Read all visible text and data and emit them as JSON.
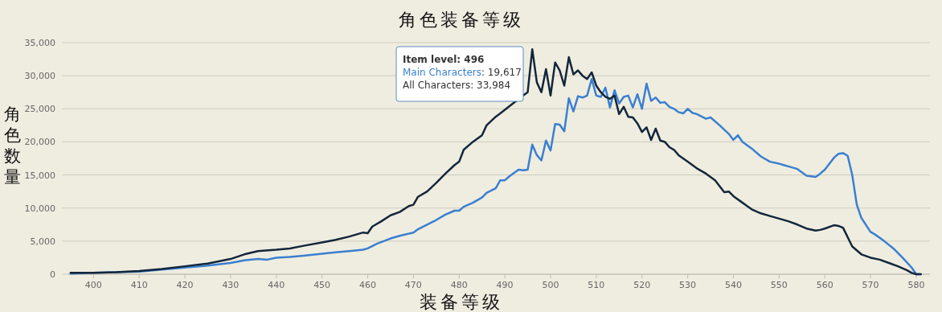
{
  "chart_data": {
    "type": "line",
    "title": "角色装备等级",
    "xlabel": "装备等级",
    "ylabel": "角色数量",
    "xlim": [
      394.5,
      583
    ],
    "xticks": [
      400,
      410,
      420,
      430,
      440,
      450,
      460,
      470,
      480,
      490,
      500,
      510,
      520,
      530,
      540,
      550,
      560,
      570,
      580
    ],
    "ylim": [
      0,
      35000
    ],
    "yticks": [
      {
        "value": 0,
        "label": "0"
      },
      {
        "value": 5000,
        "label": "5,000"
      },
      {
        "value": 10000,
        "label": "10,000"
      },
      {
        "value": 15000,
        "label": "15,000"
      },
      {
        "value": 20000,
        "label": "20,000"
      },
      {
        "value": 25000,
        "label": "25,000"
      },
      {
        "value": 30000,
        "label": "30,000"
      },
      {
        "value": 35000,
        "label": "35,000"
      }
    ],
    "grid": "y",
    "legend": false,
    "annotations": [
      "Item level: 496",
      "Main Characters: 19,617",
      "All Characters: 33,984"
    ],
    "series": [
      {
        "color": "#3a7fd0",
        "x": [
          395,
          400,
          410,
          420,
          425,
          430,
          433,
          436,
          438,
          440,
          443,
          446,
          450,
          453,
          456,
          459,
          460,
          462,
          465,
          467,
          470,
          471,
          473,
          475,
          477,
          479,
          480,
          481,
          483,
          485,
          486,
          488,
          489,
          490,
          491,
          493,
          494,
          495,
          496,
          497,
          498,
          499,
          500,
          501,
          502,
          503,
          504,
          505,
          506,
          507,
          508,
          509,
          510,
          511,
          512,
          513,
          514,
          515,
          516,
          517,
          518,
          519,
          520,
          521,
          522,
          523,
          524,
          525,
          526,
          527,
          528,
          529,
          530,
          531,
          532,
          534,
          535,
          537,
          539,
          540,
          541,
          542,
          544,
          546,
          548,
          550,
          551,
          552,
          554,
          556,
          558,
          559,
          560,
          562,
          563,
          564,
          565,
          566,
          567,
          568,
          570,
          571,
          573,
          575,
          577,
          579,
          580,
          581
        ],
        "values": [
          100,
          200,
          400,
          1000,
          1300,
          1700,
          2100,
          2300,
          2200,
          2500,
          2600,
          2800,
          3100,
          3300,
          3500,
          3700,
          3900,
          4600,
          5400,
          5800,
          6300,
          6800,
          7500,
          8200,
          9000,
          9600,
          9600,
          10200,
          10800,
          11600,
          12300,
          13000,
          14200,
          14200,
          14800,
          15800,
          15700,
          15800,
          19600,
          18000,
          17200,
          20200,
          18700,
          22700,
          22600,
          21600,
          26600,
          24600,
          26900,
          26700,
          27000,
          29500,
          27000,
          26800,
          28200,
          25200,
          27800,
          25800,
          26800,
          27000,
          25200,
          27200,
          25000,
          28800,
          26200,
          26700,
          25900,
          26000,
          25300,
          25000,
          24500,
          24300,
          25000,
          24400,
          24200,
          23500,
          23700,
          22500,
          21200,
          20300,
          21000,
          20000,
          19000,
          17800,
          17000,
          16700,
          16500,
          16300,
          15900,
          14900,
          14700,
          15200,
          15800,
          17600,
          18200,
          18300,
          17900,
          15000,
          10500,
          8500,
          6400,
          6000,
          5000,
          3900,
          2500,
          1000,
          0,
          0
        ]
      },
      {
        "color": "#13263b",
        "x": [
          395,
          400,
          405,
          410,
          415,
          420,
          425,
          430,
          433,
          436,
          440,
          443,
          446,
          450,
          453,
          456,
          459,
          460,
          461,
          463,
          465,
          467,
          469,
          470,
          471,
          473,
          475,
          477,
          479,
          480,
          481,
          483,
          485,
          486,
          488,
          489,
          494,
          495,
          496,
          497,
          498,
          499,
          500,
          501,
          502,
          503,
          504,
          505,
          506,
          507,
          508,
          509,
          510,
          511,
          512,
          513,
          514,
          515,
          516,
          517,
          518,
          519,
          520,
          521,
          522,
          523,
          524,
          525,
          526,
          527,
          528,
          530,
          532,
          534,
          536,
          538,
          539,
          540,
          542,
          544,
          546,
          548,
          550,
          552,
          554,
          556,
          558,
          559,
          560,
          562,
          563,
          564,
          566,
          568,
          570,
          572,
          574,
          576,
          578,
          579,
          580,
          581
        ],
        "values": [
          200,
          200,
          300,
          500,
          800,
          1200,
          1600,
          2300,
          3000,
          3500,
          3700,
          3900,
          4300,
          4800,
          5200,
          5700,
          6300,
          6200,
          7200,
          8000,
          8900,
          9400,
          10300,
          10500,
          11700,
          12500,
          13800,
          15200,
          16500,
          17000,
          18800,
          20000,
          21000,
          22500,
          23800,
          24300,
          27000,
          27500,
          34000,
          29000,
          27500,
          31000,
          27000,
          32000,
          30800,
          28500,
          32800,
          30200,
          30800,
          30000,
          29500,
          30500,
          28500,
          27500,
          26800,
          26500,
          27000,
          24200,
          25300,
          23800,
          23700,
          22800,
          21500,
          22200,
          20300,
          22000,
          20200,
          20000,
          19200,
          18800,
          18000,
          17000,
          16000,
          15200,
          14200,
          12400,
          12500,
          11800,
          10800,
          9800,
          9200,
          8800,
          8400,
          8000,
          7500,
          6900,
          6600,
          6700,
          6900,
          7400,
          7300,
          7000,
          4200,
          3000,
          2500,
          2200,
          1700,
          1200,
          600,
          200,
          0,
          0
        ]
      }
    ]
  }
}
